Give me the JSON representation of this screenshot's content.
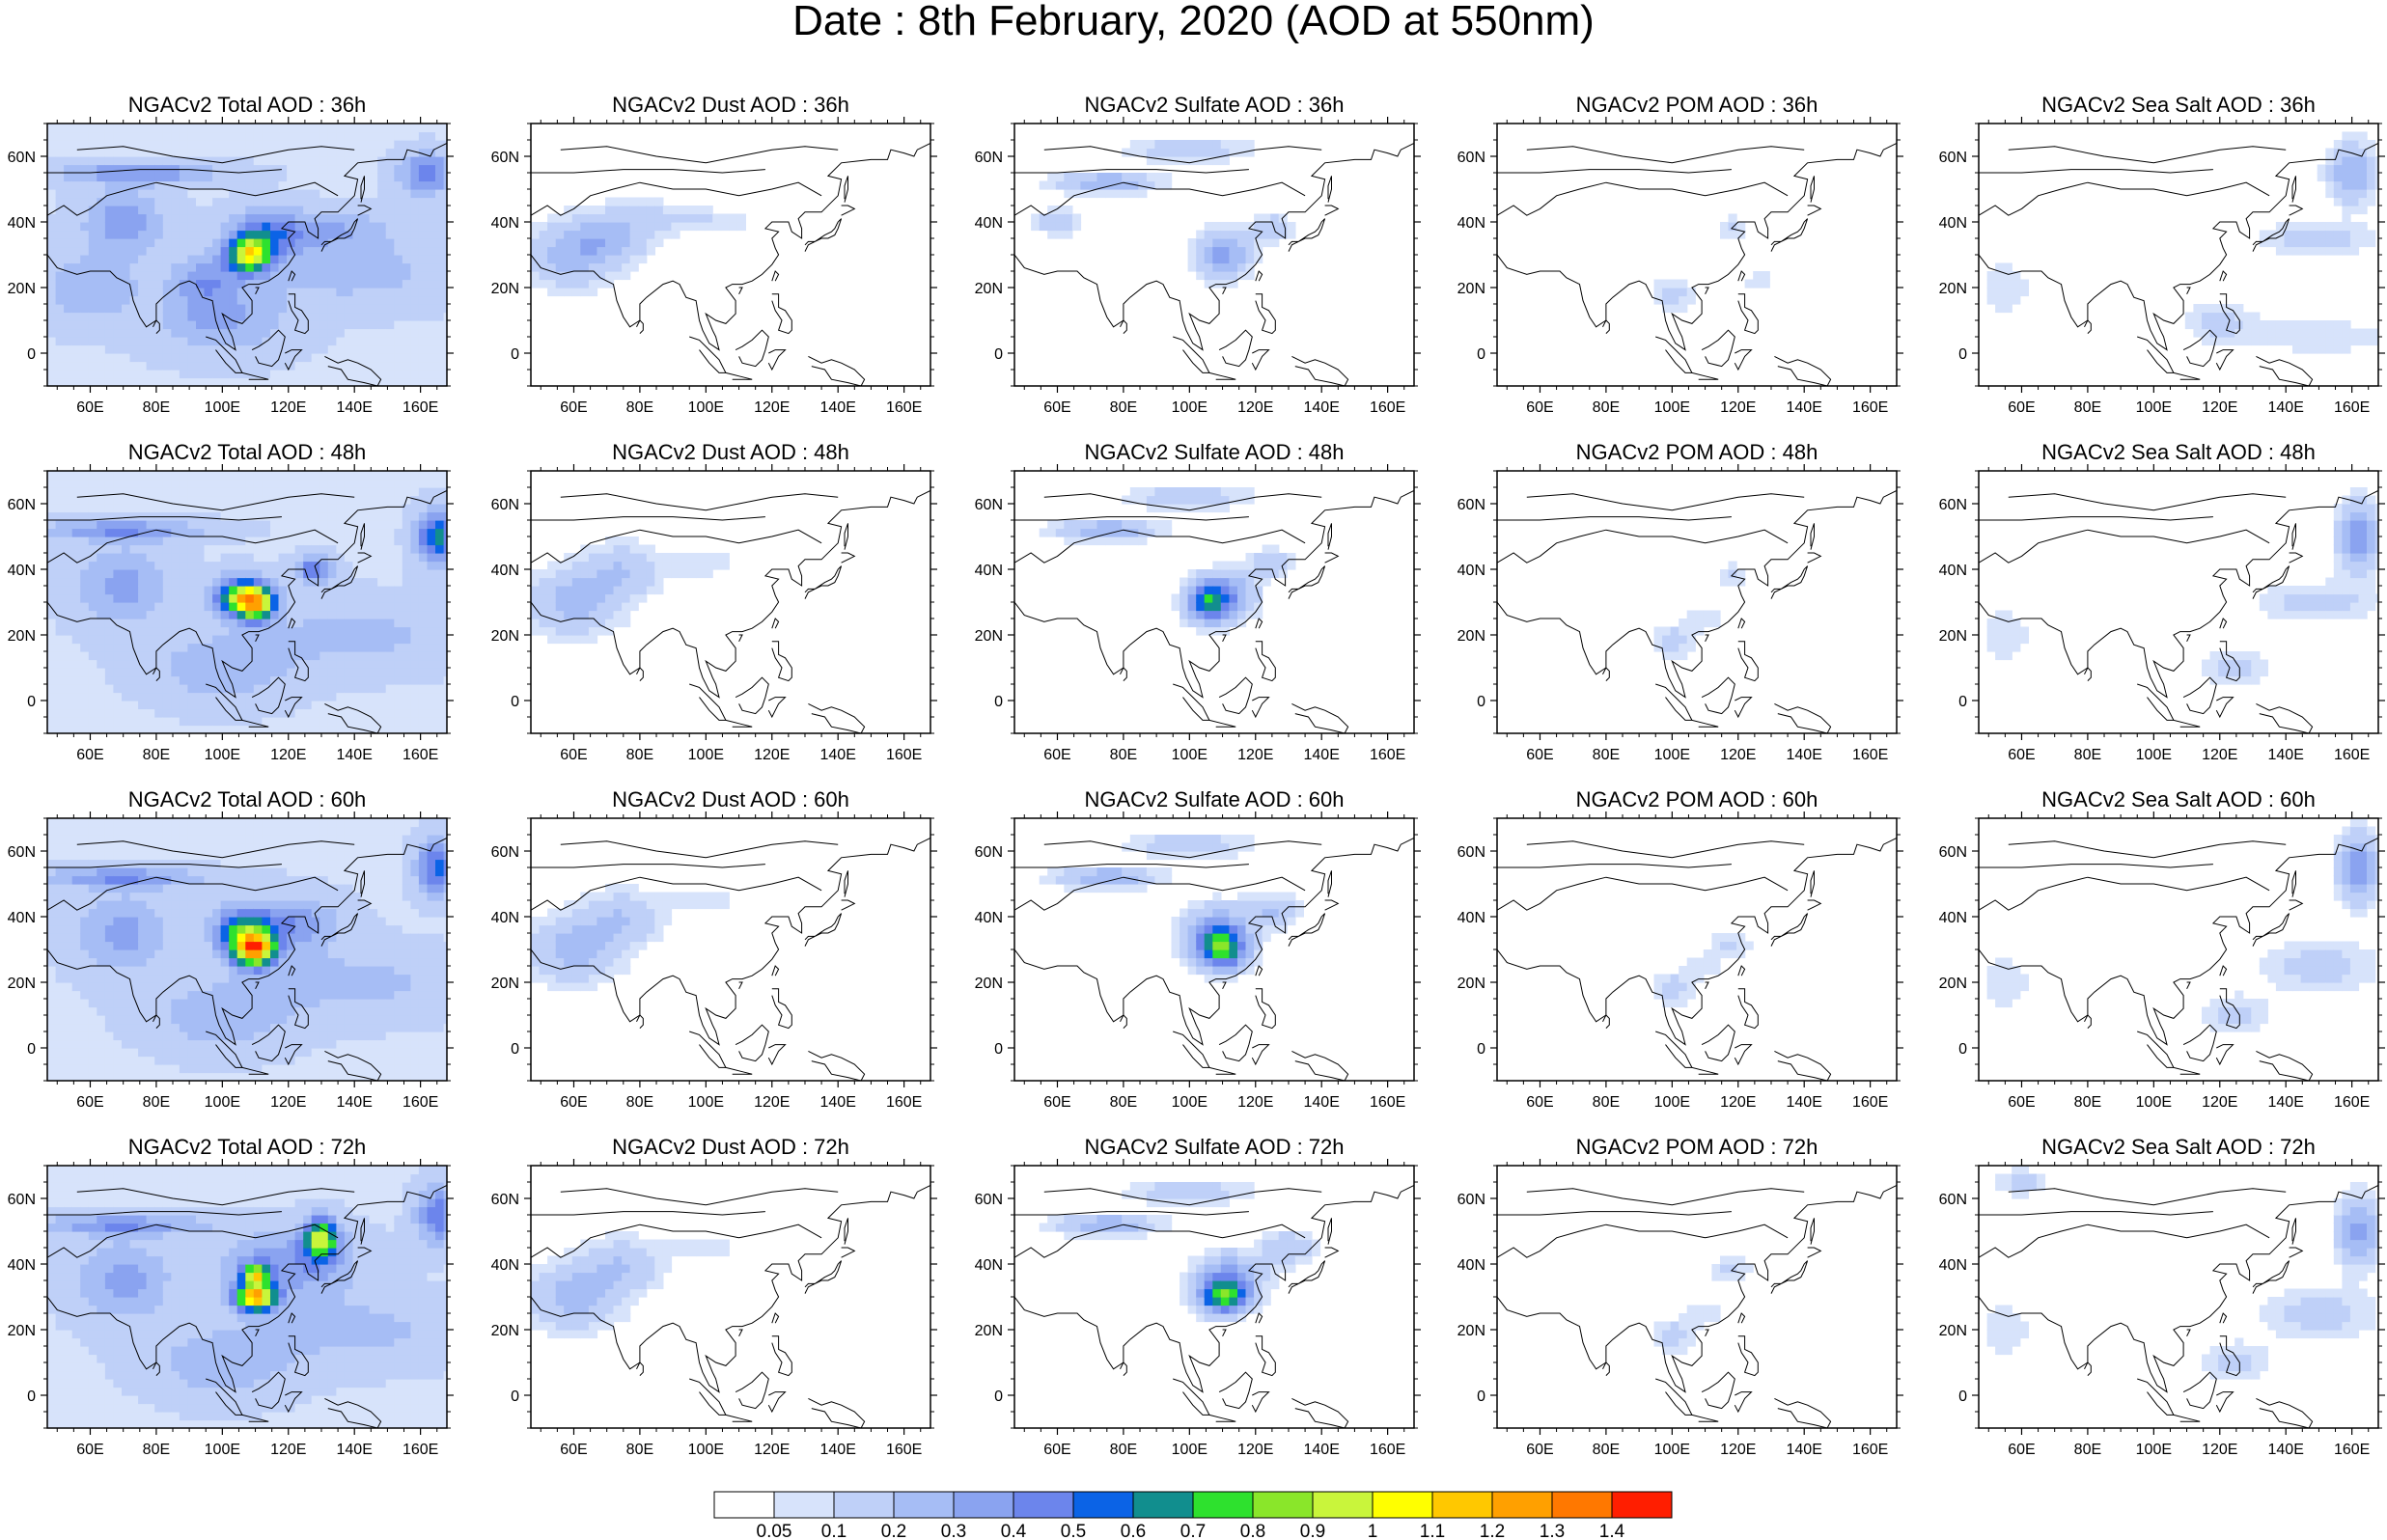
{
  "title": "Date : 8th February, 2020 (AOD at 550nm)",
  "map_extent": {
    "lon": [
      47,
      168
    ],
    "lat": [
      -10,
      70
    ]
  },
  "lon_ticks": [
    "60E",
    "80E",
    "100E",
    "120E",
    "140E",
    "160E"
  ],
  "lat_ticks": [
    "60N",
    "40N",
    "20N",
    "0"
  ],
  "colorbar": {
    "labels": [
      "0.05",
      "0.1",
      "0.2",
      "0.3",
      "0.4",
      "0.5",
      "0.6",
      "0.7",
      "0.8",
      "0.9",
      "1",
      "1.1",
      "1.2",
      "1.3",
      "1.4"
    ],
    "colors": [
      "#ffffff",
      "#d7e3fb",
      "#bfd0f8",
      "#a6bdf5",
      "#8aa3f0",
      "#6c85ec",
      "#0b63e6",
      "#118e8e",
      "#2ee12e",
      "#8ae62a",
      "#c9f53b",
      "#ffff00",
      "#ffc800",
      "#ffa000",
      "#ff7800",
      "#ff1e00"
    ]
  },
  "chart_data": [
    {
      "type": "heatmap",
      "title": "NGACv2 Total AOD : 36h",
      "species": "Total",
      "hour": 36,
      "blobs": [
        [
          70,
          40,
          12,
          10,
          0.28
        ],
        [
          95,
          22,
          10,
          8,
          0.25
        ],
        [
          108,
          30,
          6,
          5,
          0.8
        ],
        [
          112,
          35,
          10,
          8,
          0.35
        ],
        [
          130,
          38,
          20,
          6,
          0.22
        ],
        [
          162,
          55,
          8,
          6,
          0.4
        ],
        [
          100,
          10,
          20,
          10,
          0.22
        ],
        [
          75,
          55,
          25,
          3,
          0.3
        ],
        [
          140,
          25,
          30,
          10,
          0.16
        ],
        [
          60,
          20,
          15,
          10,
          0.2
        ]
      ]
    },
    {
      "type": "heatmap",
      "title": "NGACv2 Dust AOD : 36h",
      "species": "Dust",
      "hour": 36,
      "blobs": [
        [
          60,
          30,
          14,
          10,
          0.25
        ],
        [
          72,
          35,
          12,
          6,
          0.18
        ],
        [
          80,
          42,
          14,
          5,
          0.12
        ],
        [
          102,
          40,
          12,
          4,
          0.1
        ]
      ]
    },
    {
      "type": "heatmap",
      "title": "NGACv2 Sulfate AOD : 36h",
      "species": "Sulfate",
      "hour": 36,
      "blobs": [
        [
          110,
          30,
          8,
          7,
          0.35
        ],
        [
          75,
          52,
          15,
          3,
          0.3
        ],
        [
          100,
          62,
          20,
          4,
          0.15
        ],
        [
          125,
          38,
          6,
          4,
          0.2
        ],
        [
          60,
          40,
          8,
          4,
          0.15
        ]
      ]
    },
    {
      "type": "heatmap",
      "title": "NGACv2 POM AOD : 36h",
      "species": "POM",
      "hour": 36,
      "blobs": [
        [
          100,
          18,
          6,
          5,
          0.15
        ],
        [
          118,
          38,
          4,
          4,
          0.12
        ],
        [
          126,
          22,
          4,
          3,
          0.1
        ]
      ]
    },
    {
      "type": "heatmap",
      "title": "NGACv2 Sea Salt AOD : 36h",
      "species": "Sea Salt",
      "hour": 36,
      "blobs": [
        [
          160,
          55,
          7,
          9,
          0.3
        ],
        [
          150,
          35,
          18,
          5,
          0.14
        ],
        [
          120,
          10,
          10,
          6,
          0.13
        ],
        [
          150,
          5,
          25,
          5,
          0.1
        ],
        [
          55,
          20,
          8,
          8,
          0.1
        ]
      ]
    },
    {
      "type": "heatmap",
      "title": "NGACv2 Total AOD : 48h",
      "species": "Total",
      "hour": 48,
      "blobs": [
        [
          110,
          30,
          6,
          5,
          0.9
        ],
        [
          105,
          32,
          8,
          6,
          0.6
        ],
        [
          128,
          40,
          6,
          4,
          0.4
        ],
        [
          165,
          50,
          6,
          8,
          0.55
        ],
        [
          70,
          52,
          25,
          3,
          0.3
        ],
        [
          70,
          35,
          14,
          12,
          0.25
        ],
        [
          100,
          10,
          20,
          10,
          0.2
        ],
        [
          140,
          20,
          30,
          10,
          0.15
        ]
      ]
    },
    {
      "type": "heatmap",
      "title": "NGACv2 Dust AOD : 48h",
      "species": "Dust",
      "hour": 48,
      "blobs": [
        [
          60,
          30,
          14,
          10,
          0.25
        ],
        [
          75,
          40,
          12,
          8,
          0.18
        ],
        [
          100,
          42,
          10,
          4,
          0.1
        ]
      ]
    },
    {
      "type": "heatmap",
      "title": "NGACv2 Sulfate AOD : 48h",
      "species": "Sulfate",
      "hour": 48,
      "blobs": [
        [
          105,
          30,
          6,
          6,
          0.55
        ],
        [
          112,
          32,
          8,
          7,
          0.35
        ],
        [
          75,
          52,
          15,
          3,
          0.3
        ],
        [
          100,
          62,
          20,
          4,
          0.15
        ],
        [
          125,
          42,
          6,
          4,
          0.2
        ]
      ]
    },
    {
      "type": "heatmap",
      "title": "NGACv2 POM AOD : 48h",
      "species": "POM",
      "hour": 48,
      "blobs": [
        [
          100,
          18,
          6,
          5,
          0.15
        ],
        [
          118,
          38,
          4,
          4,
          0.12
        ],
        [
          110,
          25,
          6,
          4,
          0.1
        ]
      ]
    },
    {
      "type": "heatmap",
      "title": "NGACv2 Sea Salt AOD : 48h",
      "species": "Sea Salt",
      "hour": 48,
      "blobs": [
        [
          162,
          50,
          6,
          10,
          0.4
        ],
        [
          150,
          30,
          18,
          6,
          0.14
        ],
        [
          125,
          10,
          10,
          6,
          0.13
        ],
        [
          55,
          20,
          8,
          8,
          0.1
        ]
      ]
    },
    {
      "type": "heatmap",
      "title": "NGACv2 Total AOD : 60h",
      "species": "Total",
      "hour": 60,
      "blobs": [
        [
          110,
          30,
          6,
          5,
          1.0
        ],
        [
          106,
          35,
          8,
          7,
          0.55
        ],
        [
          120,
          38,
          15,
          8,
          0.3
        ],
        [
          165,
          55,
          6,
          8,
          0.45
        ],
        [
          70,
          52,
          25,
          3,
          0.3
        ],
        [
          70,
          35,
          14,
          12,
          0.25
        ],
        [
          100,
          10,
          20,
          10,
          0.2
        ],
        [
          140,
          20,
          30,
          10,
          0.15
        ]
      ]
    },
    {
      "type": "heatmap",
      "title": "NGACv2 Dust AOD : 60h",
      "species": "Dust",
      "hour": 60,
      "blobs": [
        [
          60,
          30,
          14,
          10,
          0.25
        ],
        [
          75,
          40,
          12,
          8,
          0.18
        ],
        [
          100,
          45,
          10,
          4,
          0.1
        ]
      ]
    },
    {
      "type": "heatmap",
      "title": "NGACv2 Sulfate AOD : 60h",
      "species": "Sulfate",
      "hour": 60,
      "blobs": [
        [
          110,
          30,
          7,
          6,
          0.6
        ],
        [
          108,
          35,
          10,
          8,
          0.35
        ],
        [
          75,
          52,
          15,
          3,
          0.3
        ],
        [
          100,
          62,
          20,
          4,
          0.15
        ],
        [
          125,
          42,
          8,
          5,
          0.2
        ]
      ]
    },
    {
      "type": "heatmap",
      "title": "NGACv2 POM AOD : 60h",
      "species": "POM",
      "hour": 60,
      "blobs": [
        [
          100,
          18,
          6,
          5,
          0.15
        ],
        [
          118,
          32,
          6,
          4,
          0.12
        ],
        [
          110,
          25,
          6,
          4,
          0.1
        ]
      ]
    },
    {
      "type": "heatmap",
      "title": "NGACv2 Sea Salt AOD : 60h",
      "species": "Sea Salt",
      "hour": 60,
      "blobs": [
        [
          162,
          55,
          6,
          10,
          0.4
        ],
        [
          150,
          25,
          18,
          8,
          0.14
        ],
        [
          125,
          10,
          10,
          6,
          0.13
        ],
        [
          55,
          20,
          8,
          8,
          0.1
        ]
      ]
    },
    {
      "type": "heatmap",
      "title": "NGACv2 Total AOD : 72h",
      "species": "Total",
      "hour": 72,
      "blobs": [
        [
          110,
          30,
          6,
          4,
          1.1
        ],
        [
          110,
          37,
          4,
          3,
          0.8
        ],
        [
          130,
          48,
          5,
          6,
          0.8
        ],
        [
          120,
          40,
          20,
          10,
          0.3
        ],
        [
          165,
          55,
          6,
          8,
          0.4
        ],
        [
          70,
          52,
          25,
          3,
          0.3
        ],
        [
          70,
          35,
          14,
          12,
          0.25
        ],
        [
          100,
          10,
          20,
          10,
          0.2
        ],
        [
          140,
          20,
          30,
          10,
          0.15
        ]
      ]
    },
    {
      "type": "heatmap",
      "title": "NGACv2 Dust AOD : 72h",
      "species": "Dust",
      "hour": 72,
      "blobs": [
        [
          60,
          30,
          14,
          10,
          0.25
        ],
        [
          75,
          40,
          12,
          8,
          0.18
        ],
        [
          100,
          45,
          10,
          4,
          0.1
        ]
      ]
    },
    {
      "type": "heatmap",
      "title": "NGACv2 Sulfate AOD : 72h",
      "species": "Sulfate",
      "hour": 72,
      "blobs": [
        [
          110,
          30,
          7,
          5,
          0.65
        ],
        [
          112,
          36,
          10,
          7,
          0.35
        ],
        [
          75,
          52,
          15,
          3,
          0.3
        ],
        [
          100,
          62,
          20,
          4,
          0.15
        ],
        [
          130,
          45,
          8,
          5,
          0.2
        ]
      ]
    },
    {
      "type": "heatmap",
      "title": "NGACv2 POM AOD : 72h",
      "species": "POM",
      "hour": 72,
      "blobs": [
        [
          100,
          18,
          6,
          5,
          0.15
        ],
        [
          118,
          38,
          6,
          4,
          0.12
        ],
        [
          110,
          25,
          6,
          4,
          0.1
        ]
      ]
    },
    {
      "type": "heatmap",
      "title": "NGACv2 Sea Salt  AOD : 72h",
      "species": "Sea Salt",
      "hour": 72,
      "blobs": [
        [
          162,
          50,
          6,
          10,
          0.35
        ],
        [
          150,
          25,
          18,
          8,
          0.14
        ],
        [
          125,
          10,
          10,
          6,
          0.13
        ],
        [
          55,
          20,
          8,
          8,
          0.1
        ],
        [
          60,
          65,
          8,
          4,
          0.14
        ]
      ]
    }
  ]
}
